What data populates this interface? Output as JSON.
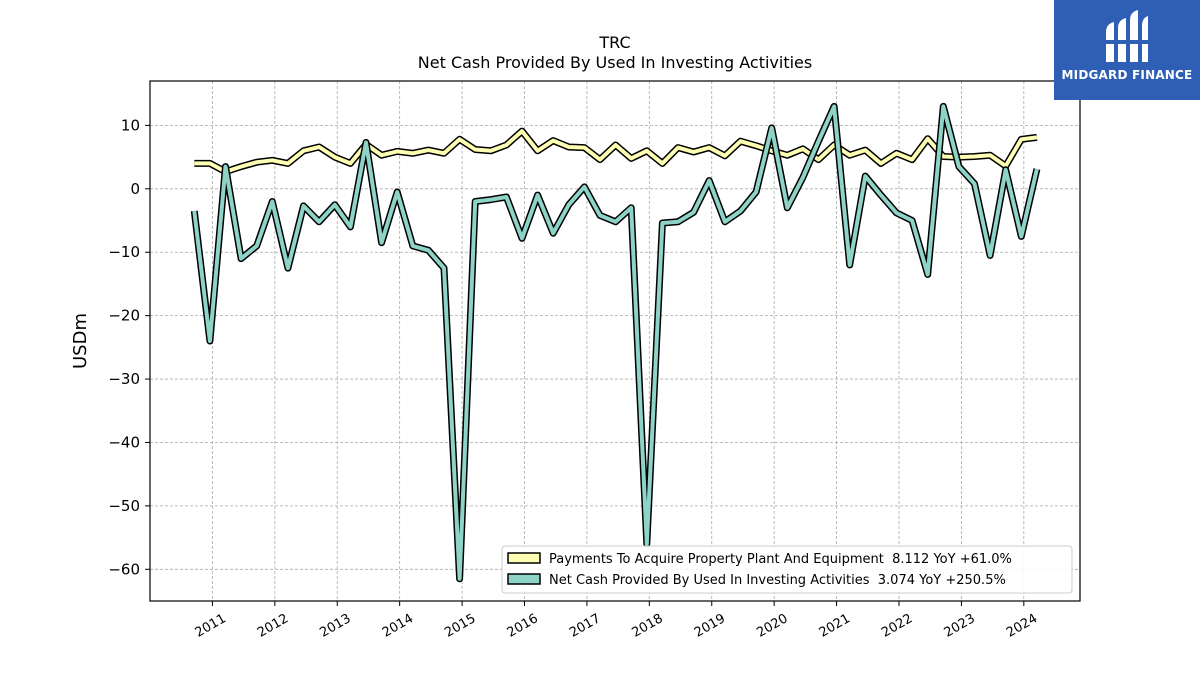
{
  "chart_data": {
    "type": "line",
    "title": "TRC",
    "subtitle": "Net Cash Provided By Used In Investing Activities",
    "ylabel": "USDm",
    "xlabel": "",
    "ylim": [
      -65,
      17
    ],
    "xlim": [
      2010.0,
      2024.9
    ],
    "grid": true,
    "legend_position": "lower-right",
    "x_ticks": [
      {
        "value": 2011,
        "label": "2011"
      },
      {
        "value": 2012,
        "label": "2012"
      },
      {
        "value": 2013,
        "label": "2013"
      },
      {
        "value": 2014,
        "label": "2014"
      },
      {
        "value": 2015,
        "label": "2015"
      },
      {
        "value": 2016,
        "label": "2016"
      },
      {
        "value": 2017,
        "label": "2017"
      },
      {
        "value": 2018,
        "label": "2018"
      },
      {
        "value": 2019,
        "label": "2019"
      },
      {
        "value": 2020,
        "label": "2020"
      },
      {
        "value": 2021,
        "label": "2021"
      },
      {
        "value": 2022,
        "label": "2022"
      },
      {
        "value": 2023,
        "label": "2023"
      },
      {
        "value": 2024,
        "label": "2024"
      }
    ],
    "y_ticks": [
      {
        "value": 10,
        "label": "10"
      },
      {
        "value": 0,
        "label": "0"
      },
      {
        "value": -10,
        "label": "−10"
      },
      {
        "value": -20,
        "label": "−20"
      },
      {
        "value": -30,
        "label": "−30"
      },
      {
        "value": -40,
        "label": "−40"
      },
      {
        "value": -50,
        "label": "−50"
      },
      {
        "value": -60,
        "label": "−60"
      }
    ],
    "x": [
      2010.71,
      2010.96,
      2011.21,
      2011.46,
      2011.71,
      2011.96,
      2012.21,
      2012.46,
      2012.71,
      2012.96,
      2013.21,
      2013.46,
      2013.71,
      2013.96,
      2014.21,
      2014.46,
      2014.71,
      2014.96,
      2015.21,
      2015.46,
      2015.71,
      2015.96,
      2016.21,
      2016.46,
      2016.71,
      2016.96,
      2017.21,
      2017.46,
      2017.71,
      2017.96,
      2018.21,
      2018.46,
      2018.71,
      2018.96,
      2019.21,
      2019.46,
      2019.71,
      2019.96,
      2020.21,
      2020.46,
      2020.71,
      2020.96,
      2021.21,
      2021.46,
      2021.71,
      2021.96,
      2022.21,
      2022.46,
      2022.71,
      2022.96,
      2023.21,
      2023.46,
      2023.71,
      2023.96,
      2024.21
    ],
    "series": [
      {
        "name": "Payments To Acquire Property Plant And Equipment  8.112 YoY +61.0%",
        "color": "#ffffb3",
        "values": [
          4.0,
          4.0,
          2.7,
          3.5,
          4.2,
          4.5,
          4.0,
          6.0,
          6.6,
          5.0,
          4.0,
          7.0,
          5.3,
          5.9,
          5.6,
          6.1,
          5.6,
          7.8,
          6.2,
          6.0,
          6.9,
          9.1,
          6.0,
          7.6,
          6.6,
          6.5,
          4.6,
          6.9,
          4.8,
          6.0,
          4.0,
          6.5,
          5.8,
          6.5,
          5.2,
          7.5,
          6.8,
          6.0,
          5.3,
          6.3,
          4.6,
          6.9,
          5.3,
          6.1,
          4.0,
          5.6,
          4.6,
          7.9,
          5.1,
          5.0,
          5.1,
          5.3,
          3.6,
          7.8,
          8.1
        ]
      },
      {
        "name": "Net Cash Provided By Used In Investing Activities  3.074 YoY +250.5%",
        "color": "#8dd3c7",
        "values": [
          -3.5,
          -24.0,
          3.5,
          -11.0,
          -9.0,
          -2.0,
          -12.5,
          -2.7,
          -5.2,
          -2.5,
          -6.0,
          7.3,
          -8.5,
          -0.5,
          -9.0,
          -9.7,
          -12.5,
          -61.5,
          -2.0,
          -1.7,
          -1.3,
          -7.8,
          -1.0,
          -7.0,
          -2.5,
          0.3,
          -4.2,
          -5.2,
          -3.0,
          -56.0,
          -5.4,
          -5.2,
          -3.7,
          1.3,
          -5.2,
          -3.5,
          -0.5,
          9.6,
          -3.0,
          1.8,
          7.5,
          13.0,
          -12.0,
          2.0,
          -1.0,
          -3.8,
          -5.0,
          -13.5,
          13.0,
          3.5,
          0.8,
          -10.5,
          3.0,
          -7.5,
          3.1
        ]
      }
    ]
  },
  "logo": {
    "text": "MIDGARD FINANCE"
  }
}
